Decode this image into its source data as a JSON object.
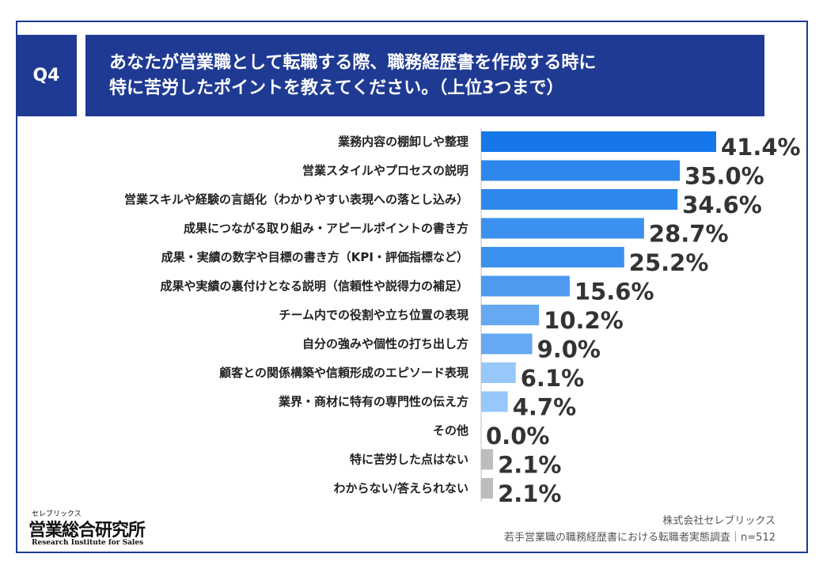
{
  "question": {
    "badge": "Q4",
    "title_line1": "あなたが営業職として転職する際、職務経歴書を作成する時に",
    "title_line2": "特に苦労したポイントを教えてください。（上位3つまで）"
  },
  "chart_data": {
    "type": "bar",
    "orientation": "horizontal",
    "categories": [
      "業務内容の棚卸しや整理",
      "営業スタイルやプロセスの説明",
      "営業スキルや経験の言語化（わかりやすい表現への落とし込み）",
      "成果につながる取り組み・アピールポイントの書き方",
      "成果・実績の数字や目標の書き方（KPI・評価指標など）",
      "成果や実績の裏付けとなる説明（信頼性や説得力の補足）",
      "チーム内での役割や立ち位置の表現",
      "自分の強みや個性の打ち出し方",
      "顧客との関係構築や信頼形成のエピソード表現",
      "業界・商材に特有の専門性の伝え方",
      "その他",
      "特に苦労した点はない",
      "わからない/答えられない"
    ],
    "values": [
      41.4,
      35.0,
      34.6,
      28.7,
      25.2,
      15.6,
      10.2,
      9.0,
      6.1,
      4.7,
      0.0,
      2.1,
      2.1
    ],
    "value_labels": [
      "41.4%",
      "35.0%",
      "34.6%",
      "28.7%",
      "25.2%",
      "15.6%",
      "10.2%",
      "9.0%",
      "6.1%",
      "4.7%",
      "0.0%",
      "2.1%",
      "2.1%"
    ],
    "colors": [
      "#1677ea",
      "#2d87ec",
      "#2d87ec",
      "#3d91ee",
      "#3d91ee",
      "#4d9af0",
      "#65a9f3",
      "#65a9f3",
      "#98c8fa",
      "#98c8fa",
      "#98c8fa",
      "#bdbdbd",
      "#bdbdbd"
    ],
    "xlim": [
      0,
      41.4
    ],
    "grid": false,
    "legend": "none"
  },
  "footer": {
    "logo_kana": "セレブリックス",
    "logo_main": "営業総合研究所",
    "logo_en": "Research Institute for Sales",
    "company": "株式会社セレブリックス",
    "survey": "若手営業職の職務経歴書における転職者実態調査｜n=512"
  }
}
